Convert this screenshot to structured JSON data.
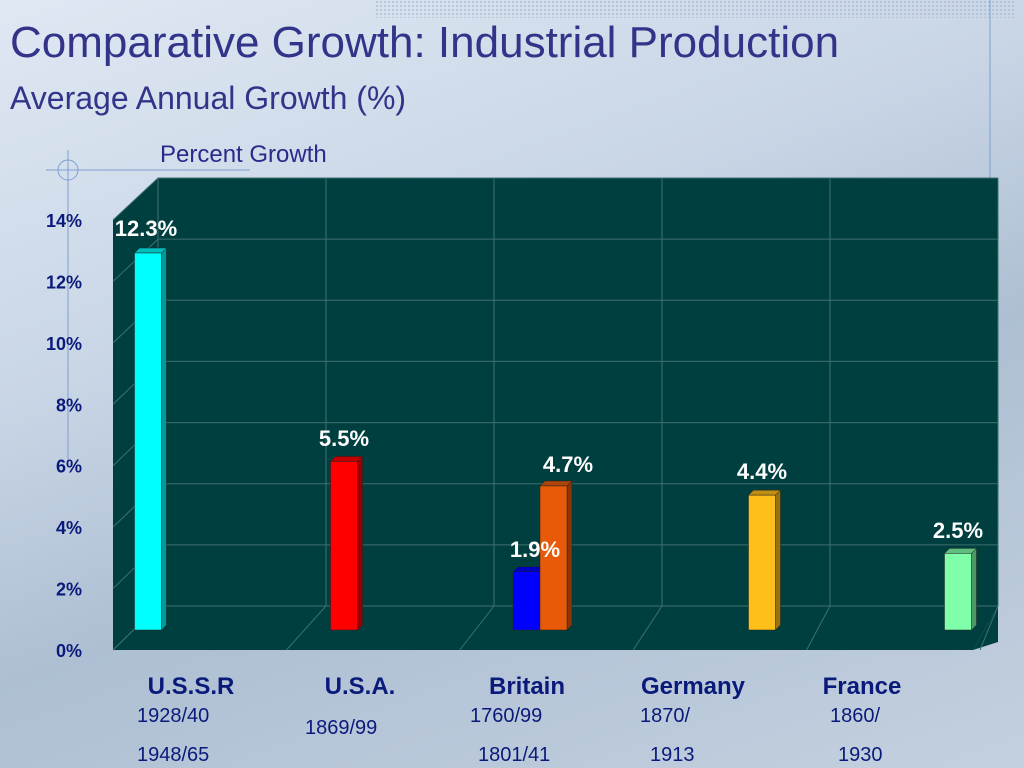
{
  "title": "Comparative Growth: Industrial Production",
  "subtitle": "Average Annual Growth (%)",
  "chart_data": {
    "type": "bar",
    "ylabel": "Percent Growth",
    "ylim": [
      0,
      14
    ],
    "yticks": [
      "0%",
      "2%",
      "4%",
      "6%",
      "8%",
      "10%",
      "12%",
      "14%"
    ],
    "grid": true,
    "categories": [
      "U.S.S.R",
      "U.S.A.",
      "Britain",
      "Germany",
      "France"
    ],
    "periods": [
      [
        "1928/40",
        "1948/65"
      ],
      [
        "1869/99"
      ],
      [
        "1760/99",
        "1801/41"
      ],
      [
        "1870/",
        "1913"
      ],
      [
        "1860/",
        "1930"
      ]
    ],
    "bars": [
      {
        "category": "U.S.S.R",
        "value": 12.3,
        "label": "12.3%",
        "color": "#00ffff"
      },
      {
        "category": "U.S.A.",
        "value": 5.5,
        "label": "5.5%",
        "color": "#ff0000"
      },
      {
        "category": "Britain",
        "value": 1.9,
        "label": "1.9%",
        "color": "#0000ff"
      },
      {
        "category": "Britain",
        "value": 4.7,
        "label": "4.7%",
        "color": "#e85a0a"
      },
      {
        "category": "Germany",
        "value": 4.4,
        "label": "4.4%",
        "color": "#ffbf1a"
      },
      {
        "category": "France",
        "value": 2.5,
        "label": "2.5%",
        "color": "#80ffaa"
      }
    ],
    "background": "#003f3f",
    "gridcolor": "#3f6f6f"
  }
}
